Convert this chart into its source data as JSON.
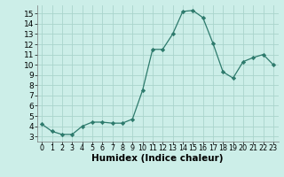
{
  "x": [
    0,
    1,
    2,
    3,
    4,
    5,
    6,
    7,
    8,
    9,
    10,
    11,
    12,
    13,
    14,
    15,
    16,
    17,
    18,
    19,
    20,
    21,
    22,
    23
  ],
  "y": [
    4.2,
    3.5,
    3.2,
    3.2,
    4.0,
    4.4,
    4.4,
    4.3,
    4.3,
    4.7,
    7.5,
    11.5,
    11.5,
    13.0,
    15.2,
    15.3,
    14.6,
    12.1,
    9.3,
    8.7,
    10.3,
    10.7,
    11.0,
    10.0
  ],
  "line_color": "#2d7a6c",
  "marker": "D",
  "marker_size": 2.2,
  "bg_color": "#cceee8",
  "grid_color": "#aad4cc",
  "xlabel": "Humidex (Indice chaleur)",
  "xlim": [
    -0.5,
    23.5
  ],
  "ylim": [
    2.5,
    15.8
  ],
  "yticks": [
    3,
    4,
    5,
    6,
    7,
    8,
    9,
    10,
    11,
    12,
    13,
    14,
    15
  ],
  "xticks": [
    0,
    1,
    2,
    3,
    4,
    5,
    6,
    7,
    8,
    9,
    10,
    11,
    12,
    13,
    14,
    15,
    16,
    17,
    18,
    19,
    20,
    21,
    22,
    23
  ],
  "xlabel_fontsize": 7.5,
  "tick_fontsize_x": 5.8,
  "tick_fontsize_y": 6.5
}
